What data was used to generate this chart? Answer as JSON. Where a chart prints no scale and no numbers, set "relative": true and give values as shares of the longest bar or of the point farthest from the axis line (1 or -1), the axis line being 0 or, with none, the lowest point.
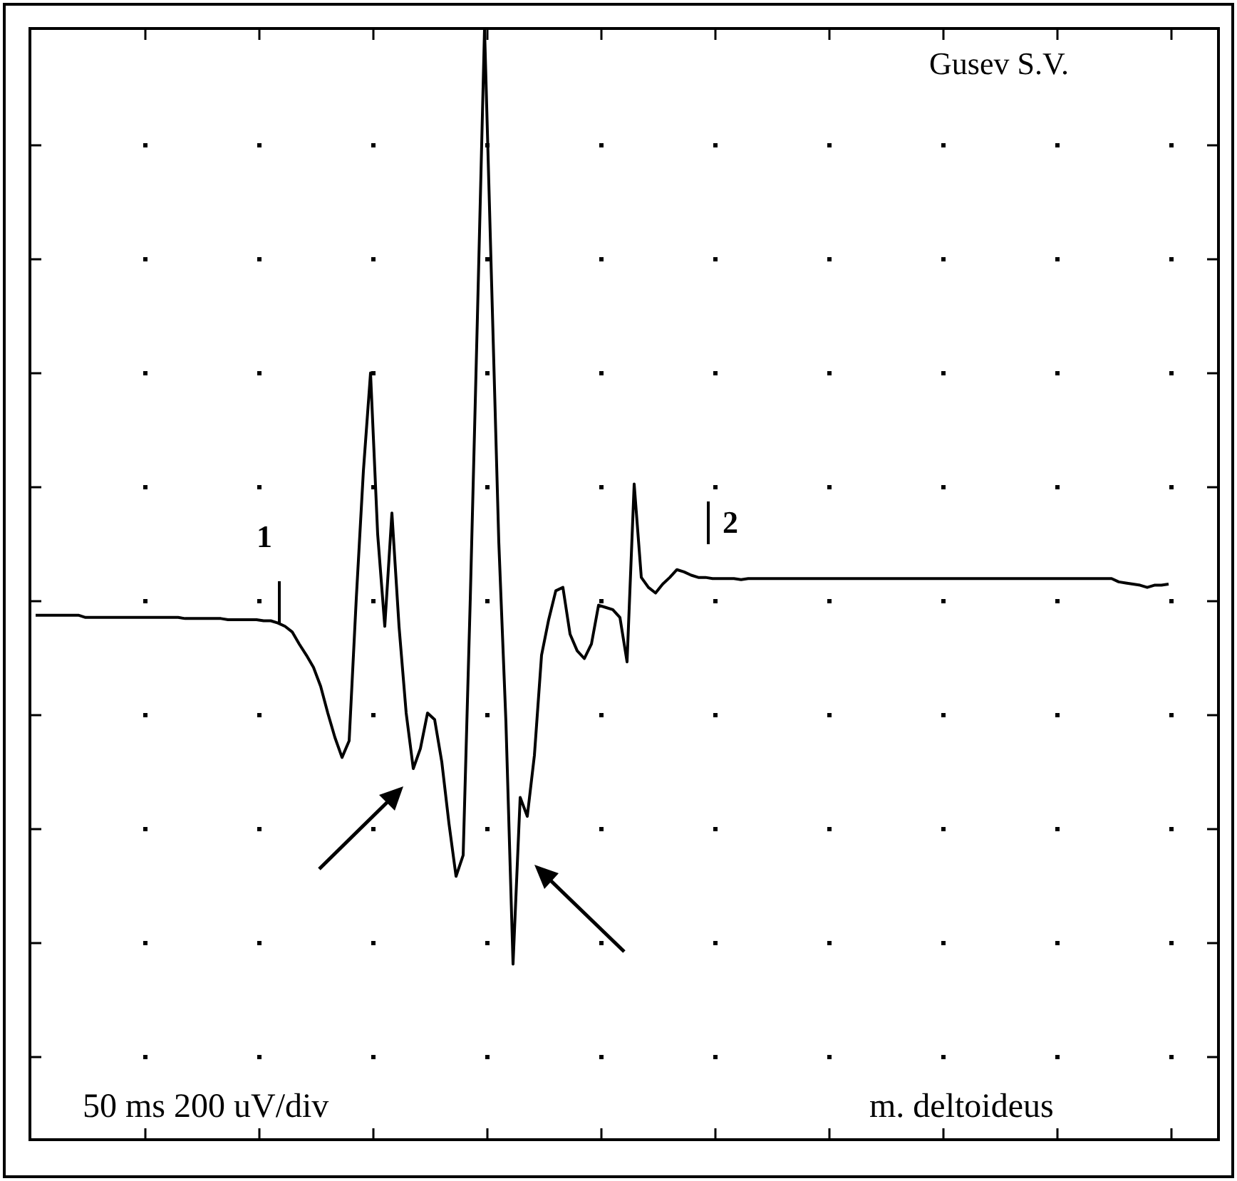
{
  "chart_data": {
    "type": "line",
    "relative": true,
    "legend": false,
    "tick_labels": false,
    "marker": "none",
    "line_style": "solid",
    "annotations": [
      "Gusev S.V.",
      "50 ms 200 uV/div",
      "m. deltoideus",
      "1",
      "2"
    ],
    "categories": [
      null,
      null,
      null,
      null,
      null,
      null,
      null,
      null,
      null,
      null,
      null,
      null,
      null,
      null,
      null,
      null,
      null,
      null,
      null,
      null,
      null,
      null,
      null,
      null,
      null,
      null,
      null,
      null,
      null,
      null,
      null,
      null,
      null,
      null,
      null,
      null,
      null,
      null,
      null,
      null,
      null,
      null,
      null,
      null,
      null,
      null,
      null,
      null,
      null,
      null,
      null,
      null,
      null,
      null,
      null,
      null,
      null,
      null,
      null,
      null,
      null,
      null,
      null,
      null,
      null,
      null,
      null,
      null,
      null,
      null,
      null,
      null,
      null,
      null,
      null,
      null,
      null,
      null,
      null,
      null,
      null,
      null,
      null,
      null,
      null,
      null,
      null,
      null,
      null,
      null,
      null,
      null,
      null,
      null,
      null,
      null,
      null,
      null,
      null,
      null,
      null,
      null,
      null,
      null,
      null,
      null,
      null,
      null,
      null,
      null,
      null,
      null,
      null,
      null,
      null,
      null,
      null,
      null,
      null,
      null,
      null,
      null,
      null,
      null,
      null,
      null,
      null,
      null,
      null,
      null,
      null,
      null,
      null,
      null,
      null,
      null,
      null,
      null,
      null,
      null,
      null,
      null,
      null,
      null,
      null,
      null,
      null,
      null,
      null,
      null,
      null,
      null,
      null,
      null,
      null,
      null,
      null,
      null,
      null,
      null
    ],
    "series": [
      {
        "color": "#000000",
        "values": [
          0.472,
          0.472,
          0.472,
          0.472,
          0.472,
          0.472,
          0.472,
          0.47,
          0.47,
          0.47,
          0.47,
          0.47,
          0.47,
          0.47,
          0.47,
          0.47,
          0.47,
          0.47,
          0.47,
          0.47,
          0.47,
          0.469,
          0.469,
          0.469,
          0.469,
          0.469,
          0.469,
          0.468,
          0.468,
          0.468,
          0.468,
          0.468,
          0.467,
          0.467,
          0.465,
          0.462,
          0.457,
          0.446,
          0.436,
          0.425,
          0.408,
          0.384,
          0.362,
          0.344,
          0.359,
          0.487,
          0.602,
          0.69,
          0.545,
          0.462,
          0.564,
          0.462,
          0.384,
          0.334,
          0.352,
          0.384,
          0.378,
          0.34,
          0.285,
          0.237,
          0.256,
          0.487,
          0.74,
          1,
          0.769,
          0.538,
          0.376,
          0.158,
          0.308,
          0.291,
          0.346,
          0.436,
          0.468,
          0.494,
          0.497,
          0.455,
          0.44,
          0.433,
          0.446,
          0.481,
          0.479,
          0.477,
          0.47,
          0.43,
          0.59,
          0.506,
          0.497,
          0.492,
          0.5,
          0.506,
          0.513,
          0.511,
          0.508,
          0.506,
          0.506,
          0.505,
          0.505,
          0.505,
          0.505,
          0.504,
          0.505,
          0.505,
          0.505,
          0.505,
          0.505,
          0.505,
          0.505,
          0.505,
          0.505,
          0.505,
          0.505,
          0.505,
          0.505,
          0.505,
          0.505,
          0.505,
          0.505,
          0.505,
          0.505,
          0.505,
          0.505,
          0.505,
          0.505,
          0.505,
          0.505,
          0.505,
          0.505,
          0.505,
          0.505,
          0.505,
          0.505,
          0.505,
          0.505,
          0.505,
          0.505,
          0.505,
          0.505,
          0.505,
          0.505,
          0.505,
          0.505,
          0.505,
          0.505,
          0.505,
          0.505,
          0.505,
          0.505,
          0.505,
          0.505,
          0.505,
          0.505,
          0.505,
          0.502,
          0.501,
          0.5,
          0.499,
          0.497,
          0.499,
          0.499,
          0.5
        ]
      }
    ]
  }
}
